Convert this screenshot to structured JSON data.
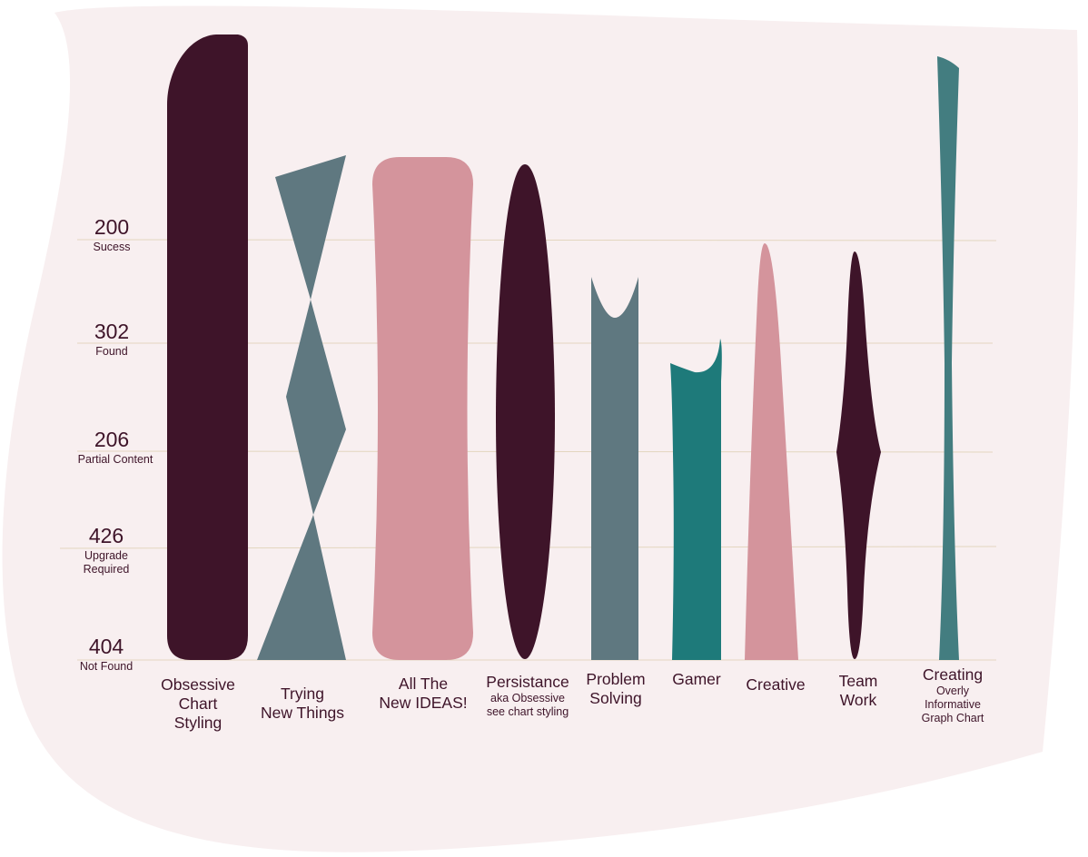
{
  "levels": [
    {
      "code": "200",
      "label": [
        "Sucess"
      ]
    },
    {
      "code": "302",
      "label": [
        "Found"
      ]
    },
    {
      "code": "206",
      "label": [
        "Partial Content"
      ]
    },
    {
      "code": "426",
      "label": [
        "Upgrade",
        "Required"
      ]
    },
    {
      "code": "404",
      "label": [
        "Not Found"
      ]
    }
  ],
  "columns": [
    {
      "label": [
        "Obsessive",
        "Chart",
        "Styling"
      ],
      "sub": []
    },
    {
      "label": [
        "Trying",
        "New Things"
      ],
      "sub": []
    },
    {
      "label": [
        "All The",
        "New IDEAS!"
      ],
      "sub": []
    },
    {
      "label": [
        "Persistance"
      ],
      "sub": [
        "aka Obsessive",
        "see chart styling"
      ]
    },
    {
      "label": [
        "Problem",
        "Solving"
      ],
      "sub": []
    },
    {
      "label": [
        "Gamer"
      ],
      "sub": []
    },
    {
      "label": [
        "Creative"
      ],
      "sub": []
    },
    {
      "label": [
        "Team",
        "Work"
      ],
      "sub": []
    },
    {
      "label": [
        "Creating"
      ],
      "sub": [
        "Overly",
        "Informative",
        "Graph Chart"
      ]
    }
  ]
}
